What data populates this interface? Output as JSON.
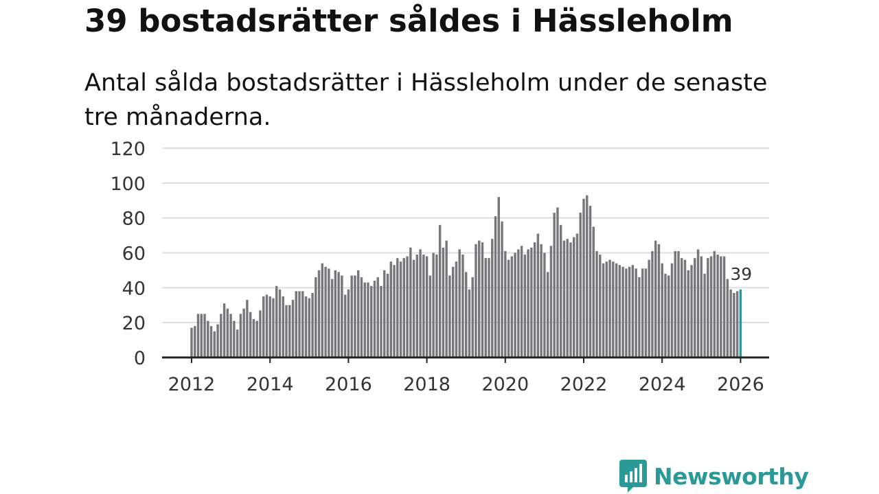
{
  "header": {
    "title": "39 bostadsrätter såldes i Hässleholm",
    "subtitle": "Antal sålda bostadsrätter i Hässleholm under de senaste tre månaderna."
  },
  "colors": {
    "bar": "#77767b",
    "highlight": "#1a9e9e",
    "grid": "#dddddd",
    "axis": "#222222",
    "brand": "#2a9a98"
  },
  "brand": {
    "name": "Newsworthy",
    "icon": "newsworthy-logo-icon"
  },
  "chart_data": {
    "type": "bar",
    "title": "",
    "xlabel": "",
    "ylabel": "",
    "ylim": [
      0,
      120
    ],
    "yticks": [
      "0",
      "20",
      "40",
      "60",
      "80",
      "100",
      "120"
    ],
    "xticks": [
      "2012",
      "2014",
      "2016",
      "2018",
      "2020",
      "2022",
      "2024",
      "2026"
    ],
    "start_year": 2012,
    "start_month": 1,
    "highlight_label": "39",
    "values": [
      17,
      18,
      25,
      25,
      25,
      21,
      18,
      15,
      19,
      25,
      31,
      28,
      25,
      21,
      16,
      25,
      28,
      33,
      26,
      22,
      21,
      27,
      35,
      36,
      35,
      34,
      41,
      39,
      35,
      30,
      30,
      33,
      38,
      38,
      38,
      35,
      34,
      37,
      46,
      50,
      54,
      52,
      51,
      45,
      50,
      49,
      47,
      36,
      39,
      47,
      47,
      50,
      46,
      43,
      43,
      41,
      44,
      46,
      41,
      50,
      48,
      55,
      53,
      57,
      55,
      57,
      58,
      63,
      56,
      59,
      62,
      59,
      58,
      47,
      60,
      59,
      76,
      63,
      67,
      47,
      52,
      55,
      62,
      59,
      49,
      39,
      46,
      65,
      67,
      66,
      57,
      57,
      68,
      81,
      92,
      78,
      61,
      56,
      58,
      60,
      62,
      64,
      59,
      62,
      63,
      66,
      71,
      65,
      60,
      49,
      64,
      83,
      86,
      76,
      67,
      68,
      66,
      69,
      71,
      83,
      91,
      93,
      87,
      75,
      61,
      59,
      54,
      55,
      56,
      55,
      54,
      53,
      52,
      51,
      52,
      53,
      51,
      46,
      51,
      51,
      56,
      61,
      67,
      65,
      54,
      48,
      47,
      54,
      61,
      61,
      57,
      56,
      50,
      53,
      57,
      62,
      58,
      48,
      57,
      58,
      61,
      59,
      58,
      58,
      45,
      39,
      37,
      38,
      39
    ]
  }
}
